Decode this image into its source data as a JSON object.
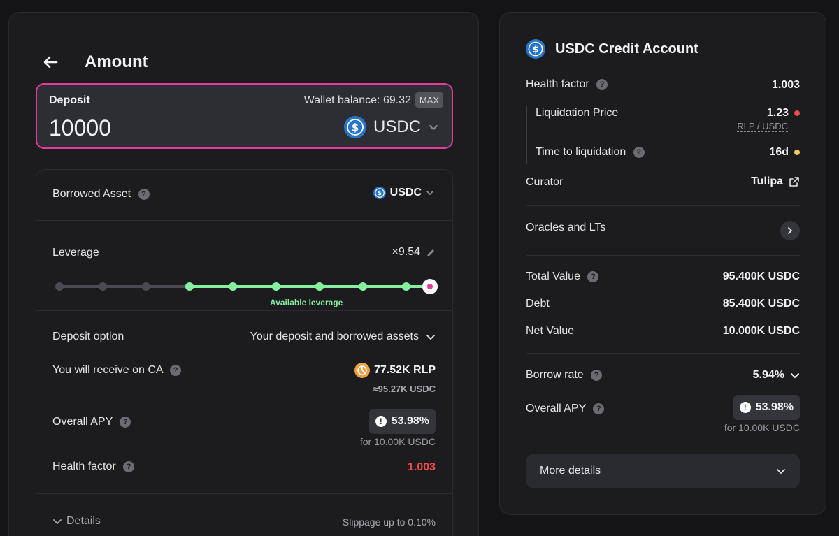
{
  "left": {
    "title": "Amount",
    "deposit": {
      "label": "Deposit",
      "wallet_balance": "Wallet balance: 69.32",
      "max_label": "MAX",
      "value": "10000",
      "token": "USDC"
    },
    "borrowed_asset": {
      "label": "Borrowed Asset",
      "token": "USDC"
    },
    "leverage": {
      "label": "Leverage",
      "value": "×9.54",
      "available_label": "Available leverage",
      "fraction": 1.0
    },
    "deposit_option": {
      "label": "Deposit option",
      "value": "Your deposit and borrowed assets"
    },
    "receive": {
      "label": "You will receive on CA",
      "amount": "77.52K RLP",
      "approx": "≈95.27K USDC"
    },
    "overall_apy": {
      "label": "Overall APY",
      "value": "53.98%",
      "note": "for 10.00K USDC"
    },
    "health_factor": {
      "label": "Health factor",
      "value": "1.003"
    },
    "details_label": "Details",
    "slippage": "Slippage up to 0.10%"
  },
  "right": {
    "title": "USDC Credit Account",
    "health_factor": {
      "label": "Health factor",
      "value": "1.003"
    },
    "liquidation_price": {
      "label": "Liquidation Price",
      "value": "1.23",
      "pair": "RLP / USDC"
    },
    "time_to_liquidation": {
      "label": "Time to liquidation",
      "value": "16d"
    },
    "curator": {
      "label": "Curator",
      "value": "Tulipa"
    },
    "oracles_label": "Oracles and LTs",
    "total_value": {
      "label": "Total Value",
      "value": "95.400K USDC"
    },
    "debt": {
      "label": "Debt",
      "value": "85.400K USDC"
    },
    "net_value": {
      "label": "Net Value",
      "value": "10.000K USDC"
    },
    "borrow_rate": {
      "label": "Borrow rate",
      "value": "5.94%"
    },
    "overall_apy": {
      "label": "Overall APY",
      "value": "53.98%",
      "note": "for 10.00K USDC"
    },
    "more_details_label": "More details"
  },
  "colors": {
    "accent_pink": "#e23d9a",
    "leverage_green": "#86efa0",
    "danger_red": "#f04a4a",
    "warning_yellow": "#f4c95d",
    "usdc_blue": "#2775ca"
  }
}
